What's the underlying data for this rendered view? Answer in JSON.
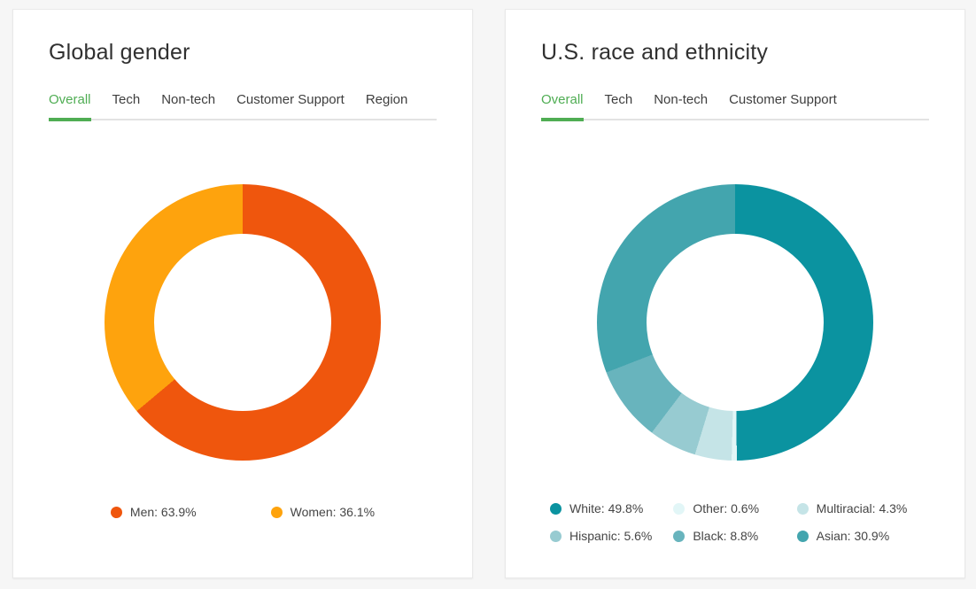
{
  "colors": {
    "page_background": "#f6f6f6",
    "card_background": "#ffffff",
    "active_tab_green": "#4fad53",
    "tab_text": "#3e3e3e",
    "title_text": "#303030",
    "tab_divider": "#e3e3e3"
  },
  "cards": [
    {
      "title": "Global gender",
      "tabs": [
        {
          "label": "Overall",
          "active": true
        },
        {
          "label": "Tech",
          "active": false
        },
        {
          "label": "Non-tech",
          "active": false
        },
        {
          "label": "Customer Support",
          "active": false
        },
        {
          "label": "Region",
          "active": false
        }
      ]
    },
    {
      "title": "U.S. race and ethnicity",
      "tabs": [
        {
          "label": "Overall",
          "active": true
        },
        {
          "label": "Tech",
          "active": false
        },
        {
          "label": "Non-tech",
          "active": false
        },
        {
          "label": "Customer Support",
          "active": false
        }
      ]
    }
  ],
  "chart_data": [
    {
      "type": "donut",
      "title": "Global gender",
      "selected_tab": "Overall",
      "categories": [
        "Men",
        "Women"
      ],
      "values": [
        63.9,
        36.1
      ],
      "unit": "%",
      "colors": [
        "#ef560d",
        "#fea30d"
      ],
      "legend_labels": [
        "Men: 63.9%",
        "Women: 36.1%"
      ],
      "start_angle": "top",
      "direction": "clockwise",
      "inner_radius_pct": 64,
      "legend_position": "bottom",
      "legend_columns": 2
    },
    {
      "type": "donut",
      "title": "U.S. race and ethnicity",
      "selected_tab": "Overall",
      "categories": [
        "White",
        "Other",
        "Multiracial",
        "Hispanic",
        "Black",
        "Asian"
      ],
      "values": [
        49.8,
        0.6,
        4.3,
        5.6,
        8.8,
        30.9
      ],
      "unit": "%",
      "colors": [
        "#0b93a0",
        "#e2f6f7",
        "#c5e4e7",
        "#97cbd1",
        "#68b4bd",
        "#43a5ae"
      ],
      "legend_labels": [
        "White: 49.8%",
        "Other: 0.6%",
        "Multiracial: 4.3%",
        "Hispanic: 5.6%",
        "Black: 8.8%",
        "Asian: 30.9%"
      ],
      "start_angle": "top",
      "direction": "clockwise",
      "inner_radius_pct": 64,
      "legend_position": "bottom",
      "legend_columns": 3
    }
  ]
}
